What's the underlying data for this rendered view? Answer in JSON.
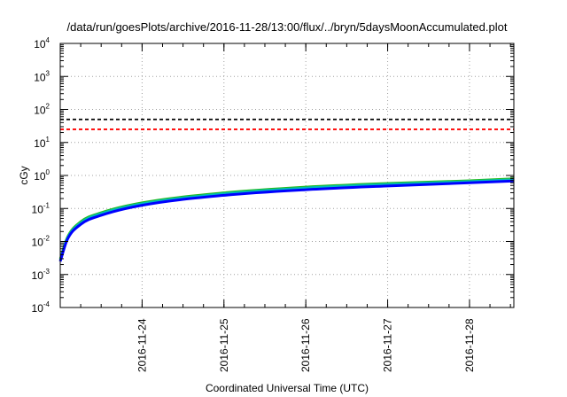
{
  "chart_data": {
    "type": "line",
    "title": "/data/run/goesPlots/archive/2016-11-28/13:00/flux/../bryn/5daysMoonAccumulated.plot",
    "xlabel": "Coordinated Universal Time (UTC)",
    "ylabel": "cGy",
    "y_scale": "log",
    "ylim_exp": [
      -4,
      4
    ],
    "y_tick_base": "10",
    "y_tick_exponents": [
      "-4",
      "-3",
      "-2",
      "-1",
      "0",
      "1",
      "2",
      "3",
      "4"
    ],
    "xlim": [
      "2016-11-23 00:00",
      "2016-11-28 13:00"
    ],
    "x_tick_labels": [
      "2016-11-24",
      "2016-11-25",
      "2016-11-26",
      "2016-11-27",
      "2016-11-28"
    ],
    "grid": true,
    "thresholds": [
      {
        "value": 50,
        "color": "#000000",
        "style": "dashed"
      },
      {
        "value": 25,
        "color": "#ff0000",
        "style": "dashed"
      }
    ],
    "series": [
      {
        "color": "#22bb22",
        "x": [
          "2016-11-23 00:00",
          "2016-11-23 02:00",
          "2016-11-23 06:00",
          "2016-11-23 12:00",
          "2016-11-24 00:00",
          "2016-11-25 00:00",
          "2016-11-26 00:00",
          "2016-11-27 00:00",
          "2016-11-28 00:00",
          "2016-11-28 13:00"
        ],
        "y": [
          0.003,
          0.013,
          0.04,
          0.075,
          0.15,
          0.3,
          0.45,
          0.58,
          0.7,
          0.8
        ]
      },
      {
        "color": "#00bbbb",
        "x": [
          "2016-11-23 00:00",
          "2016-11-23 02:00",
          "2016-11-23 06:00",
          "2016-11-23 12:00",
          "2016-11-24 00:00",
          "2016-11-25 00:00",
          "2016-11-26 00:00",
          "2016-11-27 00:00",
          "2016-11-28 00:00",
          "2016-11-28 13:00"
        ],
        "y": [
          0.0028,
          0.012,
          0.037,
          0.07,
          0.14,
          0.28,
          0.42,
          0.54,
          0.66,
          0.75
        ]
      },
      {
        "color": "#0000ff",
        "x": [
          "2016-11-23 00:00",
          "2016-11-23 02:00",
          "2016-11-23 06:00",
          "2016-11-23 12:00",
          "2016-11-24 00:00",
          "2016-11-25 00:00",
          "2016-11-26 00:00",
          "2016-11-27 00:00",
          "2016-11-28 00:00",
          "2016-11-28 13:00"
        ],
        "y": [
          0.0025,
          0.011,
          0.033,
          0.062,
          0.125,
          0.25,
          0.37,
          0.48,
          0.6,
          0.68
        ]
      }
    ]
  }
}
